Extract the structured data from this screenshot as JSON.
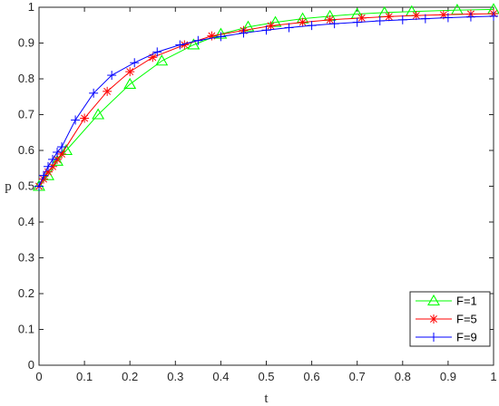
{
  "chart_data": {
    "type": "line",
    "title": "",
    "xlabel": "t",
    "ylabel": "p",
    "xlim": [
      0,
      1
    ],
    "ylim": [
      0,
      1
    ],
    "x_ticks": [
      "0",
      "0.1",
      "0.2",
      "0.3",
      "0.4",
      "0.5",
      "0.6",
      "0.7",
      "0.8",
      "0.9",
      "1"
    ],
    "y_ticks": [
      "0",
      "0.1",
      "0.2",
      "0.3",
      "0.4",
      "0.5",
      "0.6",
      "0.7",
      "0.8",
      "0.9",
      "1"
    ],
    "grid": false,
    "legend_position": "bottom-right",
    "series": [
      {
        "name": "F=1",
        "color": "#00ff00",
        "marker": "triangle",
        "x": [
          0,
          0.02,
          0.04,
          0.06,
          0.13,
          0.2,
          0.27,
          0.34,
          0.4,
          0.46,
          0.52,
          0.58,
          0.64,
          0.7,
          0.76,
          0.82,
          0.92,
          1.0
        ],
        "y": [
          0.5,
          0.53,
          0.57,
          0.6,
          0.7,
          0.785,
          0.85,
          0.895,
          0.925,
          0.945,
          0.958,
          0.968,
          0.975,
          0.981,
          0.985,
          0.988,
          0.992,
          0.994
        ]
      },
      {
        "name": "F=5",
        "color": "#ff0000",
        "marker": "asterisk",
        "x": [
          0,
          0.01,
          0.02,
          0.03,
          0.04,
          0.05,
          0.1,
          0.15,
          0.2,
          0.25,
          0.32,
          0.38,
          0.45,
          0.51,
          0.58,
          0.64,
          0.71,
          0.77,
          0.83,
          0.89,
          0.95,
          1.0
        ],
        "y": [
          0.5,
          0.52,
          0.54,
          0.555,
          0.575,
          0.59,
          0.69,
          0.765,
          0.82,
          0.86,
          0.895,
          0.92,
          0.935,
          0.948,
          0.958,
          0.965,
          0.97,
          0.974,
          0.977,
          0.979,
          0.981,
          0.982
        ]
      },
      {
        "name": "F=9",
        "color": "#0000ff",
        "marker": "plus",
        "x": [
          0,
          0.01,
          0.02,
          0.03,
          0.04,
          0.05,
          0.08,
          0.12,
          0.16,
          0.21,
          0.26,
          0.31,
          0.35,
          0.4,
          0.45,
          0.5,
          0.55,
          0.6,
          0.65,
          0.7,
          0.75,
          0.8,
          0.85,
          0.9,
          0.95,
          1.0
        ],
        "y": [
          0.5,
          0.53,
          0.555,
          0.575,
          0.595,
          0.61,
          0.685,
          0.76,
          0.81,
          0.845,
          0.875,
          0.895,
          0.907,
          0.918,
          0.928,
          0.936,
          0.943,
          0.949,
          0.954,
          0.958,
          0.962,
          0.965,
          0.968,
          0.971,
          0.973,
          0.975
        ]
      }
    ]
  }
}
